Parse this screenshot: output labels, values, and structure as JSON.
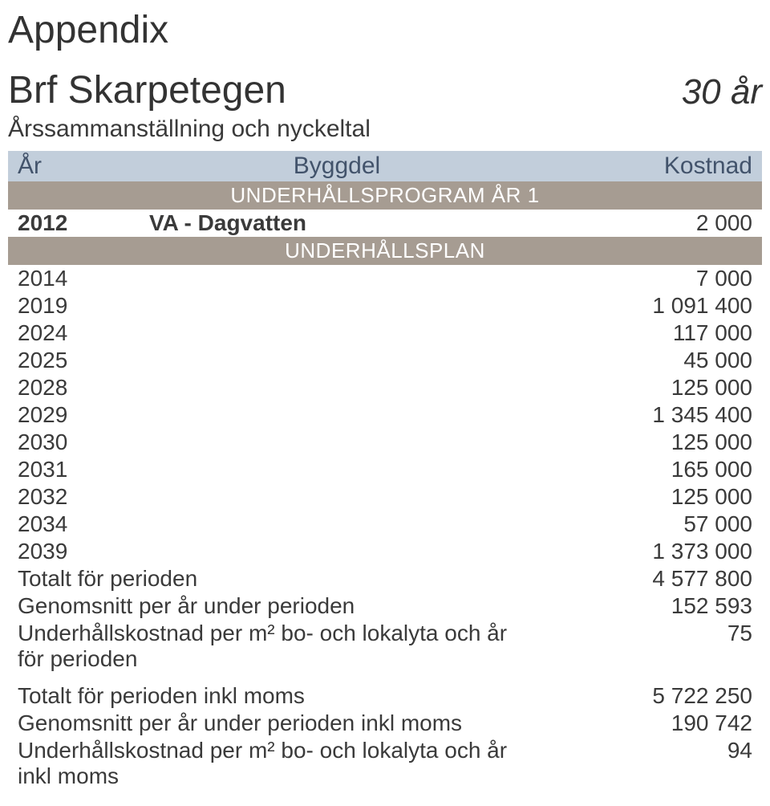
{
  "page": {
    "title": "Appendix",
    "org": "Brf Skarpetegen",
    "period": "30 år",
    "subtitle": "Årssammanställning och nyckeltal"
  },
  "header": {
    "col_year": "År",
    "col_desc": "Byggdel",
    "col_cost": "Kostnad",
    "bg": "#c2cedb",
    "fg": "#42536b"
  },
  "bands": {
    "program": "UNDERHÅLLSPROGRAM ÅR 1",
    "plan": "UNDERHÅLLSPLAN",
    "bg": "#a69c92",
    "fg": "#ffffff"
  },
  "program_rows": [
    {
      "year": "2012",
      "desc": "VA - Dagvatten",
      "cost": "2 000",
      "bold": true
    }
  ],
  "plan_rows": [
    {
      "year": "2014",
      "cost": "7 000"
    },
    {
      "year": "2019",
      "cost": "1 091 400"
    },
    {
      "year": "2024",
      "cost": "117 000"
    },
    {
      "year": "2025",
      "cost": "45 000"
    },
    {
      "year": "2028",
      "cost": "125 000"
    },
    {
      "year": "2029",
      "cost": "1 345 400"
    },
    {
      "year": "2030",
      "cost": "125 000"
    },
    {
      "year": "2031",
      "cost": "165 000"
    },
    {
      "year": "2032",
      "cost": "125 000"
    },
    {
      "year": "2034",
      "cost": "57 000"
    },
    {
      "year": "2039",
      "cost": "1 373 000"
    }
  ],
  "summary": [
    {
      "label": "Totalt för perioden",
      "value": "4 577 800"
    },
    {
      "label": "Genomsnitt per år under perioden",
      "value": "152 593"
    },
    {
      "label": "Underhållskostnad per m² bo- och lokalyta och år för perioden",
      "value": "75"
    }
  ],
  "summary2": [
    {
      "label": "Totalt för perioden inkl moms",
      "value": "5 722 250"
    },
    {
      "label": "Genomsnitt per år under perioden inkl moms",
      "value": "190 742"
    },
    {
      "label": "Underhållskostnad per m² bo- och lokalyta och år inkl moms",
      "value": "94"
    }
  ],
  "colors": {
    "text": "#3a3a3a",
    "background": "#ffffff"
  },
  "fonts": {
    "title_size_pt": 36,
    "body_size_pt": 21
  }
}
